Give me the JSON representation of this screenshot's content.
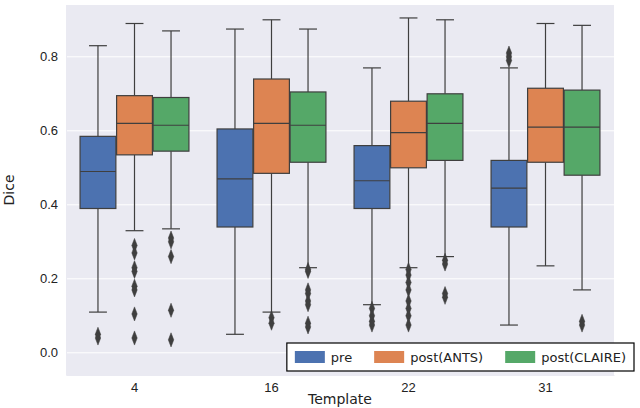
{
  "chart_data": {
    "type": "box",
    "x_label": "Template",
    "y_label": "Dice",
    "categories": [
      "4",
      "16",
      "22",
      "31"
    ],
    "ylim": [
      -0.06,
      0.94
    ],
    "yticks": [
      {
        "value": 0.0,
        "label": "0.0"
      },
      {
        "value": 0.2,
        "label": "0.2"
      },
      {
        "value": 0.4,
        "label": "0.4"
      },
      {
        "value": 0.6,
        "label": "0.6"
      },
      {
        "value": 0.8,
        "label": "0.8"
      }
    ],
    "grid": true,
    "legend": "lower right",
    "series": [
      {
        "name": "pre",
        "color": "#4c72b0",
        "boxes": [
          {
            "whislo": 0.11,
            "q1": 0.39,
            "med": 0.49,
            "q3": 0.585,
            "whishi": 0.83,
            "fliers": [
              0.05,
              0.04
            ]
          },
          {
            "whislo": 0.05,
            "q1": 0.34,
            "med": 0.47,
            "q3": 0.605,
            "whishi": 0.875,
            "fliers": []
          },
          {
            "whislo": 0.13,
            "q1": 0.39,
            "med": 0.465,
            "q3": 0.56,
            "whishi": 0.77,
            "fliers": [
              0.12,
              0.1,
              0.085,
              0.075
            ]
          },
          {
            "whislo": 0.075,
            "q1": 0.34,
            "med": 0.445,
            "q3": 0.52,
            "whishi": 0.77,
            "fliers": [
              0.81,
              0.8,
              0.79
            ]
          }
        ]
      },
      {
        "name": "post(ANTS)",
        "color": "#dd8452",
        "boxes": [
          {
            "whislo": 0.33,
            "q1": 0.535,
            "med": 0.62,
            "q3": 0.695,
            "whishi": 0.89,
            "fliers": [
              0.29,
              0.27,
              0.23,
              0.22,
              0.18,
              0.17,
              0.105,
              0.04
            ]
          },
          {
            "whislo": 0.11,
            "q1": 0.485,
            "med": 0.62,
            "q3": 0.74,
            "whishi": 0.9,
            "fliers": [
              0.095,
              0.08
            ]
          },
          {
            "whislo": 0.23,
            "q1": 0.5,
            "med": 0.595,
            "q3": 0.68,
            "whishi": 0.905,
            "fliers": [
              0.225,
              0.21,
              0.19,
              0.17,
              0.14,
              0.12,
              0.1,
              0.075
            ]
          },
          {
            "whislo": 0.235,
            "q1": 0.515,
            "med": 0.61,
            "q3": 0.715,
            "whishi": 0.89,
            "fliers": []
          }
        ]
      },
      {
        "name": "post(CLAIRE)",
        "color": "#55a868",
        "boxes": [
          {
            "whislo": 0.335,
            "q1": 0.545,
            "med": 0.615,
            "q3": 0.69,
            "whishi": 0.87,
            "fliers": [
              0.31,
              0.3,
              0.26,
              0.115,
              0.035
            ]
          },
          {
            "whislo": 0.23,
            "q1": 0.515,
            "med": 0.615,
            "q3": 0.705,
            "whishi": 0.875,
            "fliers": [
              0.225,
              0.22,
              0.17,
              0.16,
              0.14,
              0.13,
              0.08,
              0.07
            ]
          },
          {
            "whislo": 0.26,
            "q1": 0.52,
            "med": 0.62,
            "q3": 0.7,
            "whishi": 0.9,
            "fliers": [
              0.25,
              0.24,
              0.16,
              0.15
            ]
          },
          {
            "whislo": 0.17,
            "q1": 0.48,
            "med": 0.61,
            "q3": 0.71,
            "whishi": 0.885,
            "fliers": [
              0.085,
              0.075
            ]
          }
        ]
      }
    ]
  }
}
